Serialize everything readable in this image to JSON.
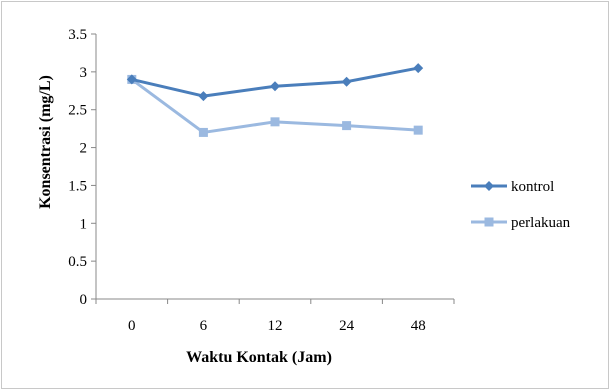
{
  "chart_data": {
    "type": "line",
    "title": "",
    "xlabel": "Waktu Kontak (Jam)",
    "ylabel": "Konsentrasi (mg/L)",
    "categories": [
      "0",
      "6",
      "12",
      "24",
      "48"
    ],
    "ylim": [
      0,
      3.5
    ],
    "yticks": [
      "0",
      "0.5",
      "1",
      "1.5",
      "2",
      "2.5",
      "3",
      "3.5"
    ],
    "grid": false,
    "legend_position": "right",
    "series": [
      {
        "name": "kontrol",
        "color": "#4a7ebb",
        "marker": "diamond",
        "values": [
          2.9,
          2.68,
          2.81,
          2.87,
          3.05
        ]
      },
      {
        "name": "perlakuan",
        "color": "#9bb9e0",
        "marker": "square",
        "values": [
          2.9,
          2.2,
          2.34,
          2.29,
          2.23
        ]
      }
    ]
  }
}
